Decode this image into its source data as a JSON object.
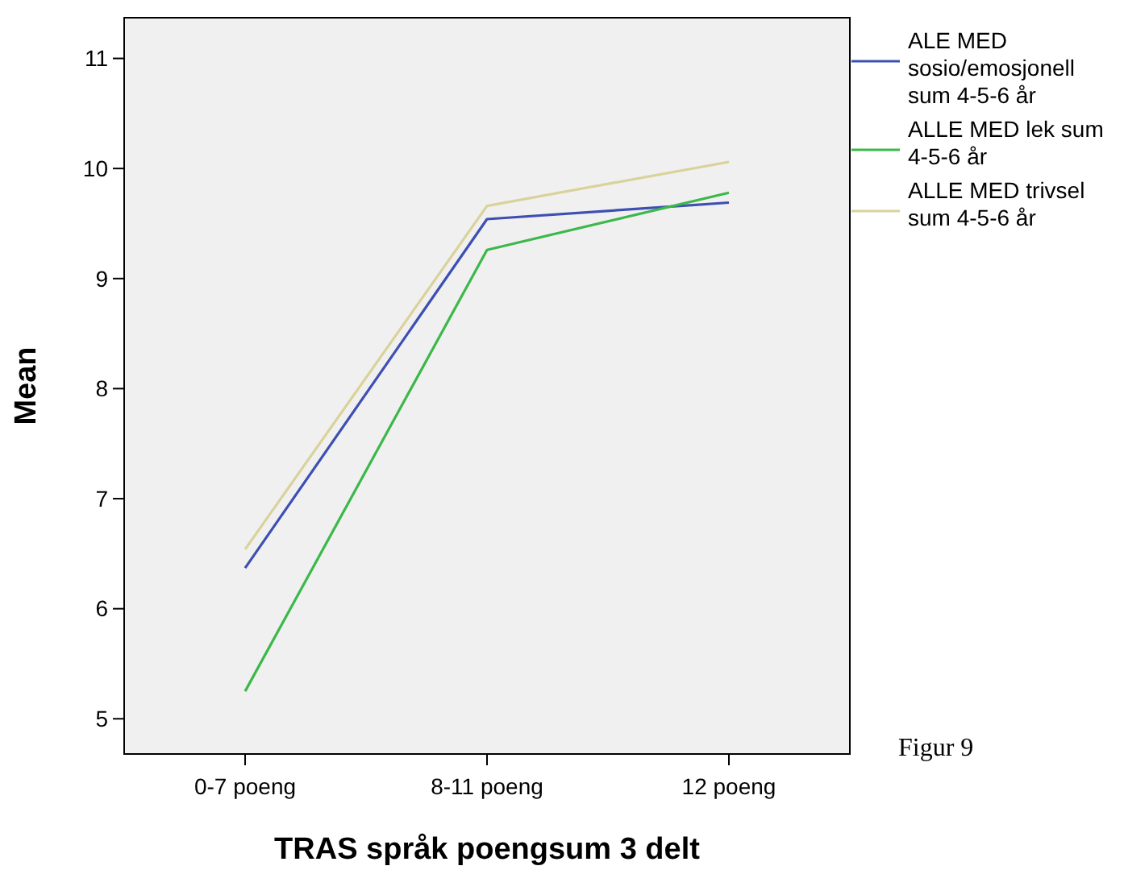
{
  "chart_data": {
    "type": "line",
    "xlabel": "TRAS språk poengsum 3 delt",
    "ylabel": "Mean",
    "categories": [
      "0-7 poeng",
      "8-11 poeng",
      "12 poeng"
    ],
    "series": [
      {
        "name": "ALE MED sosio/emosjonell sum 4-5-6 år",
        "color": "#3d4fb3",
        "values": [
          6.37,
          9.54,
          9.69
        ]
      },
      {
        "name": "ALLE MED lek sum 4-5-6 år",
        "color": "#3cb84a",
        "values": [
          5.25,
          9.26,
          9.78
        ]
      },
      {
        "name": "ALLE MED trivsel sum 4-5-6 år",
        "color": "#d9d29a",
        "values": [
          6.54,
          9.66,
          10.06
        ]
      }
    ],
    "ylim": [
      4.68,
      11.37
    ],
    "yticks": [
      5,
      6,
      7,
      8,
      9,
      10,
      11
    ],
    "grid": false,
    "legend": "right",
    "marker": "none",
    "line_style": "solid",
    "annotations": [
      "Figur 9"
    ]
  }
}
